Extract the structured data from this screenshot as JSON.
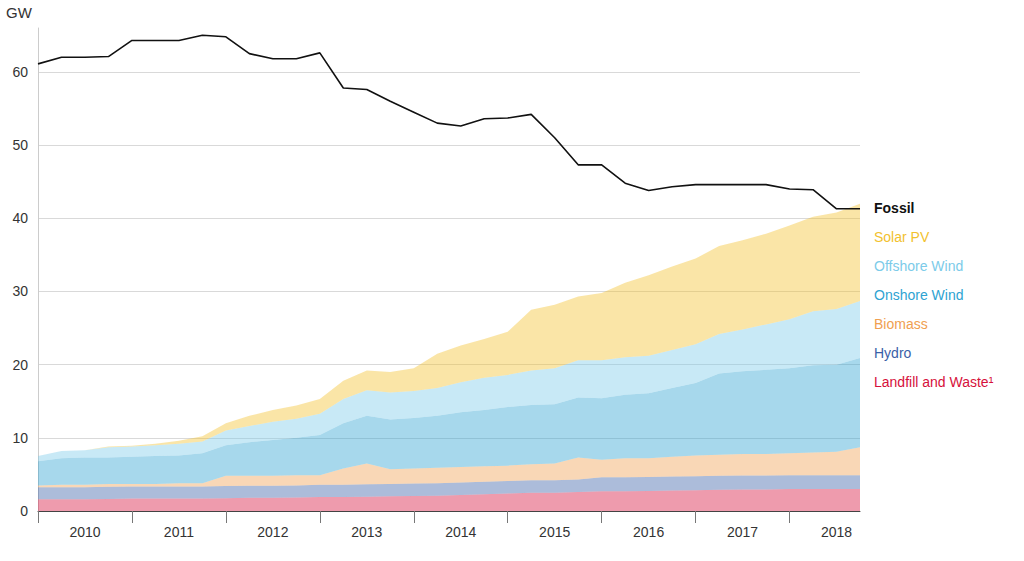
{
  "chart_data": {
    "type": "area",
    "stacked": true,
    "grid": true,
    "legend": "right",
    "y_label": "GW",
    "categories": [
      null,
      null,
      "2010",
      null,
      null,
      null,
      "2011",
      null,
      null,
      null,
      "2012",
      null,
      null,
      null,
      "2013",
      null,
      null,
      null,
      "2014",
      null,
      null,
      null,
      "2015",
      null,
      null,
      null,
      "2016",
      null,
      null,
      null,
      "2017",
      null,
      null,
      null,
      "2018",
      null
    ],
    "ylim": [
      0,
      66
    ],
    "yticks": [
      0,
      10,
      20,
      30,
      40,
      50,
      60
    ],
    "series": [
      {
        "name": "Landfill and Waste¹",
        "color": "#d6103b",
        "values": [
          1.6,
          1.6,
          1.6,
          1.65,
          1.7,
          1.7,
          1.7,
          1.7,
          1.75,
          1.8,
          1.8,
          1.85,
          1.9,
          1.9,
          1.95,
          2.0,
          2.05,
          2.1,
          2.2,
          2.3,
          2.4,
          2.5,
          2.5,
          2.6,
          2.7,
          2.7,
          2.75,
          2.8,
          2.85,
          2.9,
          2.95,
          2.95,
          3.0,
          3.0,
          3.0,
          3.0
        ]
      },
      {
        "name": "Hydro",
        "color": "#3a5fa8",
        "values": [
          1.65,
          1.65,
          1.65,
          1.65,
          1.65,
          1.65,
          1.65,
          1.65,
          1.65,
          1.65,
          1.65,
          1.65,
          1.7,
          1.7,
          1.7,
          1.7,
          1.7,
          1.7,
          1.7,
          1.7,
          1.7,
          1.7,
          1.7,
          1.7,
          1.9,
          1.9,
          1.9,
          1.9,
          1.9,
          1.9,
          1.9,
          1.9,
          1.9,
          1.9,
          1.9,
          1.9
        ]
      },
      {
        "name": "Biomass",
        "color": "#f0a050",
        "values": [
          0.25,
          0.35,
          0.35,
          0.4,
          0.35,
          0.35,
          0.45,
          0.45,
          1.4,
          1.35,
          1.35,
          1.4,
          1.3,
          2.2,
          2.85,
          2.0,
          2.05,
          2.1,
          2.1,
          2.1,
          2.1,
          2.2,
          2.3,
          3.0,
          2.4,
          2.6,
          2.55,
          2.7,
          2.85,
          2.9,
          2.95,
          2.95,
          3.0,
          3.1,
          3.2,
          3.8
        ]
      },
      {
        "name": "Onshore Wind",
        "color": "#2ea3d2",
        "values": [
          3.3,
          3.6,
          3.7,
          3.6,
          3.7,
          3.8,
          3.8,
          4.1,
          4.2,
          4.6,
          4.9,
          5.1,
          5.5,
          6.2,
          6.5,
          6.8,
          6.9,
          7.1,
          7.5,
          7.7,
          8.0,
          8.1,
          8.1,
          8.2,
          8.4,
          8.7,
          8.9,
          9.4,
          9.9,
          11.1,
          11.3,
          11.5,
          11.6,
          11.9,
          11.9,
          12.2
        ]
      },
      {
        "name": "Offshore Wind",
        "color": "#7ccbe9",
        "values": [
          0.7,
          1.0,
          1.0,
          1.4,
          1.4,
          1.5,
          1.6,
          1.6,
          2.0,
          2.2,
          2.5,
          2.6,
          2.9,
          3.3,
          3.5,
          3.7,
          3.7,
          3.8,
          4.1,
          4.4,
          4.4,
          4.7,
          4.9,
          5.1,
          5.2,
          5.1,
          5.1,
          5.2,
          5.3,
          5.4,
          5.7,
          6.2,
          6.7,
          7.4,
          7.6,
          7.8
        ]
      },
      {
        "name": "Solar PV",
        "color": "#f2c12e",
        "values": [
          0,
          0,
          0,
          0.1,
          0.1,
          0.2,
          0.4,
          0.7,
          1.0,
          1.4,
          1.6,
          1.8,
          2.0,
          2.5,
          2.7,
          2.8,
          3.1,
          4.7,
          5.0,
          5.3,
          5.9,
          8.3,
          8.7,
          8.7,
          9.2,
          10.2,
          11.0,
          11.4,
          11.7,
          12.0,
          12.2,
          12.4,
          12.8,
          12.9,
          13.2,
          13.3
        ]
      },
      {
        "name": "Fossil",
        "color": "#111111",
        "type": "line",
        "values": [
          61.1,
          62.0,
          62.0,
          62.1,
          64.3,
          64.3,
          64.3,
          65.0,
          64.8,
          62.5,
          61.8,
          61.8,
          62.6,
          57.8,
          57.6,
          56.0,
          54.5,
          53.0,
          52.6,
          53.6,
          53.7,
          54.2,
          51.0,
          47.3,
          47.3,
          44.8,
          43.8,
          44.3,
          44.6,
          44.6,
          44.6,
          44.6,
          44.0,
          43.9,
          41.3,
          41.3
        ]
      }
    ]
  }
}
